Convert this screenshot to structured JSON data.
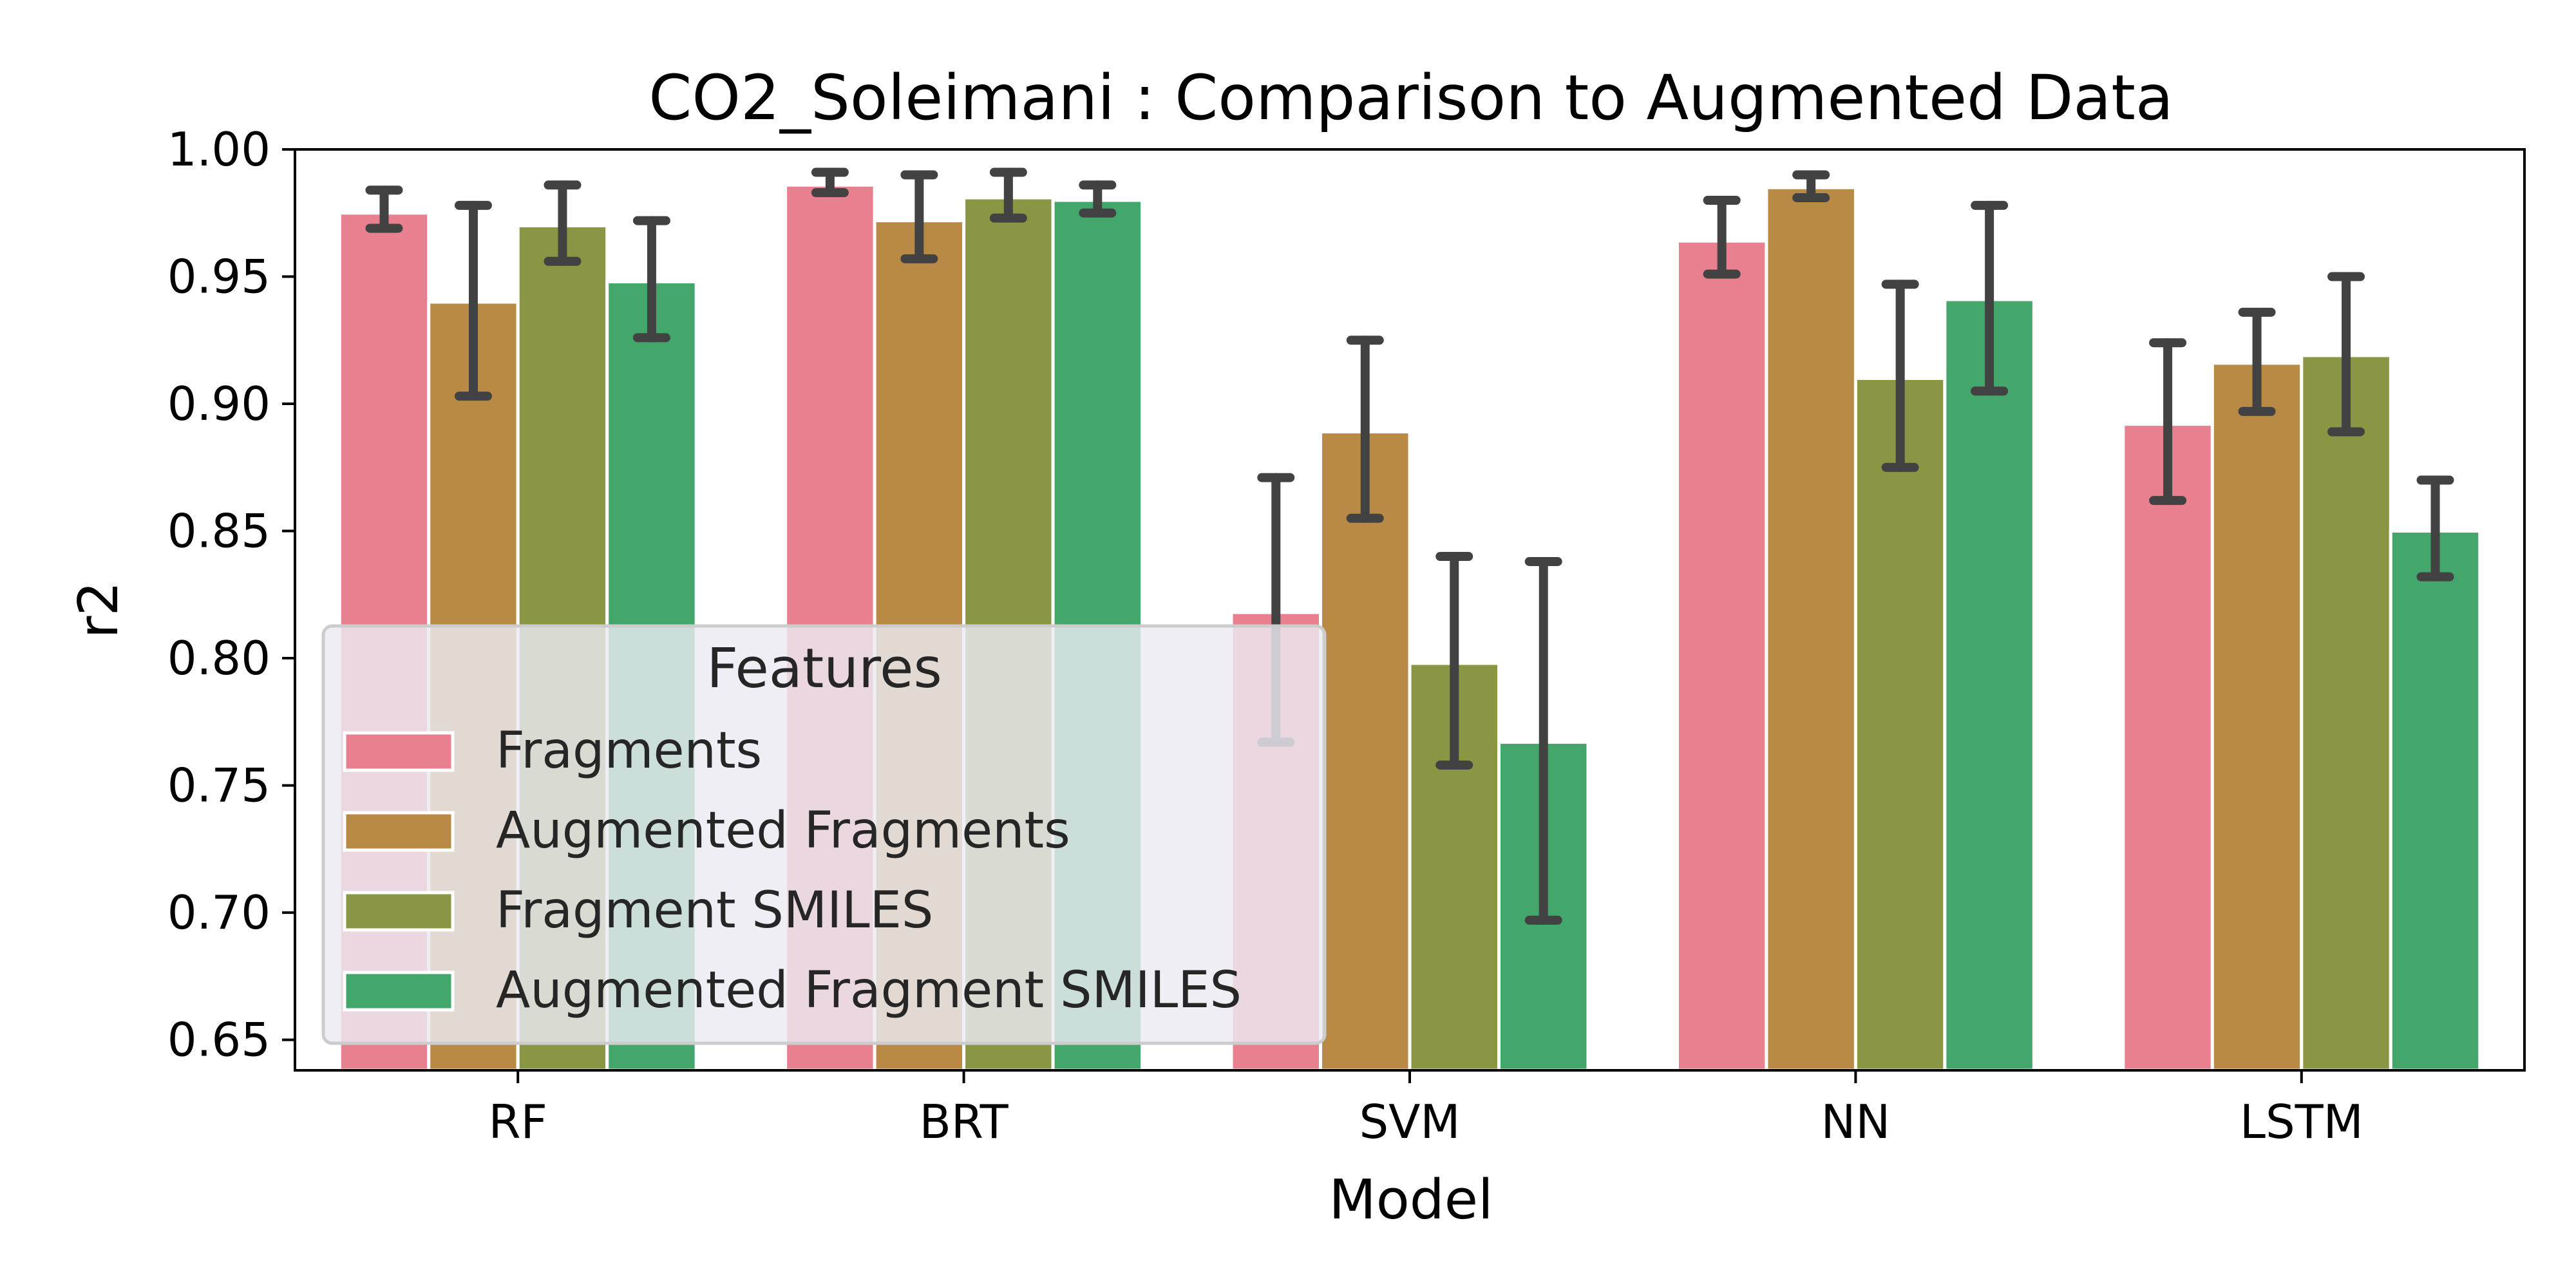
{
  "chart_data": {
    "type": "bar",
    "title": "CO2_Soleimani : Comparison to Augmented Data",
    "xlabel": "Model",
    "ylabel": "r2",
    "ylim": [
      0.638,
      1.0
    ],
    "yticks": [
      "0.65",
      "0.70",
      "0.75",
      "0.80",
      "0.85",
      "0.90",
      "0.95",
      "1.00"
    ],
    "categories": [
      "RF",
      "BRT",
      "SVM",
      "NN",
      "LSTM"
    ],
    "grid": false,
    "legend": {
      "title": "Features",
      "placement": "lower-left"
    },
    "series": [
      {
        "name": "Fragments",
        "color": "#e8808f",
        "values": [
          0.975,
          0.986,
          0.818,
          0.964,
          0.892
        ],
        "err_low": [
          0.969,
          0.983,
          0.767,
          0.951,
          0.862
        ],
        "err_high": [
          0.984,
          0.991,
          0.871,
          0.98,
          0.924
        ]
      },
      {
        "name": "Augmented Fragments",
        "color": "#b98a45",
        "values": [
          0.94,
          0.972,
          0.889,
          0.985,
          0.916
        ],
        "err_low": [
          0.903,
          0.957,
          0.855,
          0.981,
          0.897
        ],
        "err_high": [
          0.978,
          0.99,
          0.925,
          0.99,
          0.936
        ]
      },
      {
        "name": "Fragment SMILES",
        "color": "#8a9644",
        "values": [
          0.97,
          0.981,
          0.798,
          0.91,
          0.919
        ],
        "err_low": [
          0.956,
          0.973,
          0.758,
          0.875,
          0.889
        ],
        "err_high": [
          0.986,
          0.991,
          0.84,
          0.947,
          0.95
        ]
      },
      {
        "name": "Augmented Fragment SMILES",
        "color": "#43a66b",
        "values": [
          0.948,
          0.98,
          0.767,
          0.941,
          0.85
        ],
        "err_low": [
          0.926,
          0.975,
          0.697,
          0.905,
          0.832
        ],
        "err_high": [
          0.972,
          0.986,
          0.838,
          0.978,
          0.87
        ]
      }
    ]
  }
}
